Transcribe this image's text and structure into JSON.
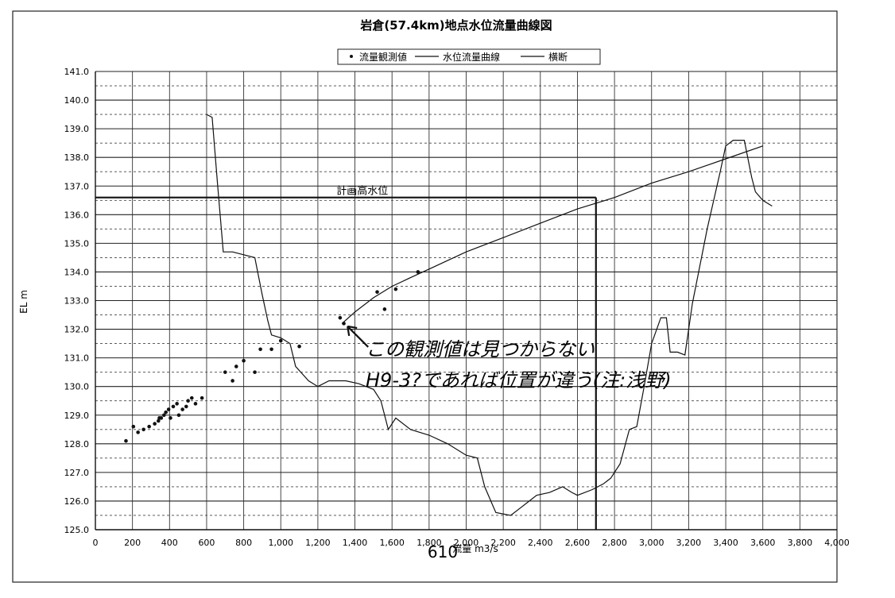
{
  "chart_data": {
    "type": "scatter",
    "title": "岩倉(57.4km)地点水位流量曲線図",
    "xlabel": "流量 m3/s",
    "ylabel": "EL m",
    "xlim": [
      0,
      4000
    ],
    "ylim": [
      125,
      141
    ],
    "x_ticks": [
      "0",
      "200",
      "400",
      "600",
      "800",
      "1,000",
      "1,200",
      "1,400",
      "1,600",
      "1,800",
      "2,000",
      "2,200",
      "2,400",
      "2,600",
      "2,800",
      "3,000",
      "3,200",
      "3,400",
      "3,600",
      "3,800",
      "4,000"
    ],
    "y_ticks": [
      "125.0",
      "126.0",
      "127.0",
      "128.0",
      "129.0",
      "130.0",
      "131.0",
      "132.0",
      "133.0",
      "134.0",
      "135.0",
      "136.0",
      "137.0",
      "138.0",
      "139.0",
      "140.0",
      "141.0"
    ],
    "grid": true,
    "legend_position": "top",
    "series": [
      {
        "name": "流量観測値",
        "kind": "points",
        "points": [
          [
            165,
            128.1
          ],
          [
            205,
            128.6
          ],
          [
            230,
            128.4
          ],
          [
            260,
            128.5
          ],
          [
            290,
            128.6
          ],
          [
            320,
            128.7
          ],
          [
            340,
            128.8
          ],
          [
            345,
            128.9
          ],
          [
            355,
            128.9
          ],
          [
            370,
            129.0
          ],
          [
            380,
            129.1
          ],
          [
            395,
            129.2
          ],
          [
            405,
            128.9
          ],
          [
            420,
            129.3
          ],
          [
            440,
            129.4
          ],
          [
            450,
            129.0
          ],
          [
            470,
            129.2
          ],
          [
            490,
            129.3
          ],
          [
            500,
            129.5
          ],
          [
            520,
            129.6
          ],
          [
            540,
            129.4
          ],
          [
            575,
            129.6
          ],
          [
            700,
            130.5
          ],
          [
            740,
            130.2
          ],
          [
            760,
            130.7
          ],
          [
            800,
            130.9
          ],
          [
            860,
            130.5
          ],
          [
            890,
            131.3
          ],
          [
            950,
            131.3
          ],
          [
            1000,
            131.6
          ],
          [
            1100,
            131.4
          ],
          [
            1320,
            132.4
          ],
          [
            1340,
            132.2
          ],
          [
            1520,
            133.3
          ],
          [
            1560,
            132.7
          ],
          [
            1620,
            133.4
          ],
          [
            1740,
            134.0
          ]
        ]
      },
      {
        "name": "水位流量曲線",
        "kind": "line",
        "points": [
          [
            1330,
            132.2
          ],
          [
            1400,
            132.6
          ],
          [
            1500,
            133.1
          ],
          [
            1600,
            133.5
          ],
          [
            1700,
            133.8
          ],
          [
            1800,
            134.1
          ],
          [
            2000,
            134.7
          ],
          [
            2200,
            135.2
          ],
          [
            2400,
            135.7
          ],
          [
            2600,
            136.2
          ],
          [
            2800,
            136.6
          ],
          [
            3000,
            137.1
          ],
          [
            3200,
            137.5
          ],
          [
            3400,
            137.95
          ],
          [
            3600,
            138.4
          ]
        ]
      },
      {
        "name": "横断",
        "kind": "line",
        "points": [
          [
            600,
            139.5
          ],
          [
            630,
            139.4
          ],
          [
            660,
            137.0
          ],
          [
            690,
            134.7
          ],
          [
            740,
            134.7
          ],
          [
            800,
            134.6
          ],
          [
            860,
            134.5
          ],
          [
            900,
            133.2
          ],
          [
            930,
            132.3
          ],
          [
            950,
            131.8
          ],
          [
            1000,
            131.7
          ],
          [
            1050,
            131.5
          ],
          [
            1080,
            130.7
          ],
          [
            1150,
            130.2
          ],
          [
            1200,
            130.0
          ],
          [
            1260,
            130.2
          ],
          [
            1350,
            130.2
          ],
          [
            1420,
            130.1
          ],
          [
            1500,
            129.9
          ],
          [
            1540,
            129.5
          ],
          [
            1580,
            128.5
          ],
          [
            1620,
            128.9
          ],
          [
            1700,
            128.5
          ],
          [
            1800,
            128.3
          ],
          [
            1900,
            128.0
          ],
          [
            2000,
            127.6
          ],
          [
            2060,
            127.5
          ],
          [
            2100,
            126.5
          ],
          [
            2160,
            125.6
          ],
          [
            2240,
            125.5
          ],
          [
            2300,
            125.8
          ],
          [
            2380,
            126.2
          ],
          [
            2450,
            126.3
          ],
          [
            2520,
            126.5
          ],
          [
            2570,
            126.3
          ],
          [
            2600,
            126.2
          ],
          [
            2680,
            126.4
          ],
          [
            2740,
            126.6
          ],
          [
            2780,
            126.8
          ],
          [
            2830,
            127.3
          ],
          [
            2880,
            128.5
          ],
          [
            2920,
            128.6
          ],
          [
            2960,
            130.0
          ],
          [
            3000,
            131.5
          ],
          [
            3050,
            132.4
          ],
          [
            3080,
            132.4
          ],
          [
            3100,
            131.2
          ],
          [
            3140,
            131.2
          ],
          [
            3180,
            131.1
          ],
          [
            3220,
            132.9
          ],
          [
            3300,
            135.5
          ],
          [
            3370,
            137.5
          ],
          [
            3400,
            138.4
          ],
          [
            3440,
            138.6
          ],
          [
            3500,
            138.6
          ],
          [
            3540,
            137.3
          ],
          [
            3560,
            136.8
          ],
          [
            3600,
            136.5
          ],
          [
            3650,
            136.3
          ]
        ]
      }
    ],
    "annotations": [
      {
        "text": "計画高水位",
        "level": 136.6,
        "x_end": 2700
      }
    ],
    "handwritten_note": {
      "line1": "この観測値は見つからない",
      "line2": "H9-3?であれば位置が違う(注:浅野)",
      "arrow_target": [
        1360,
        132.1
      ]
    },
    "page_number": "610"
  }
}
